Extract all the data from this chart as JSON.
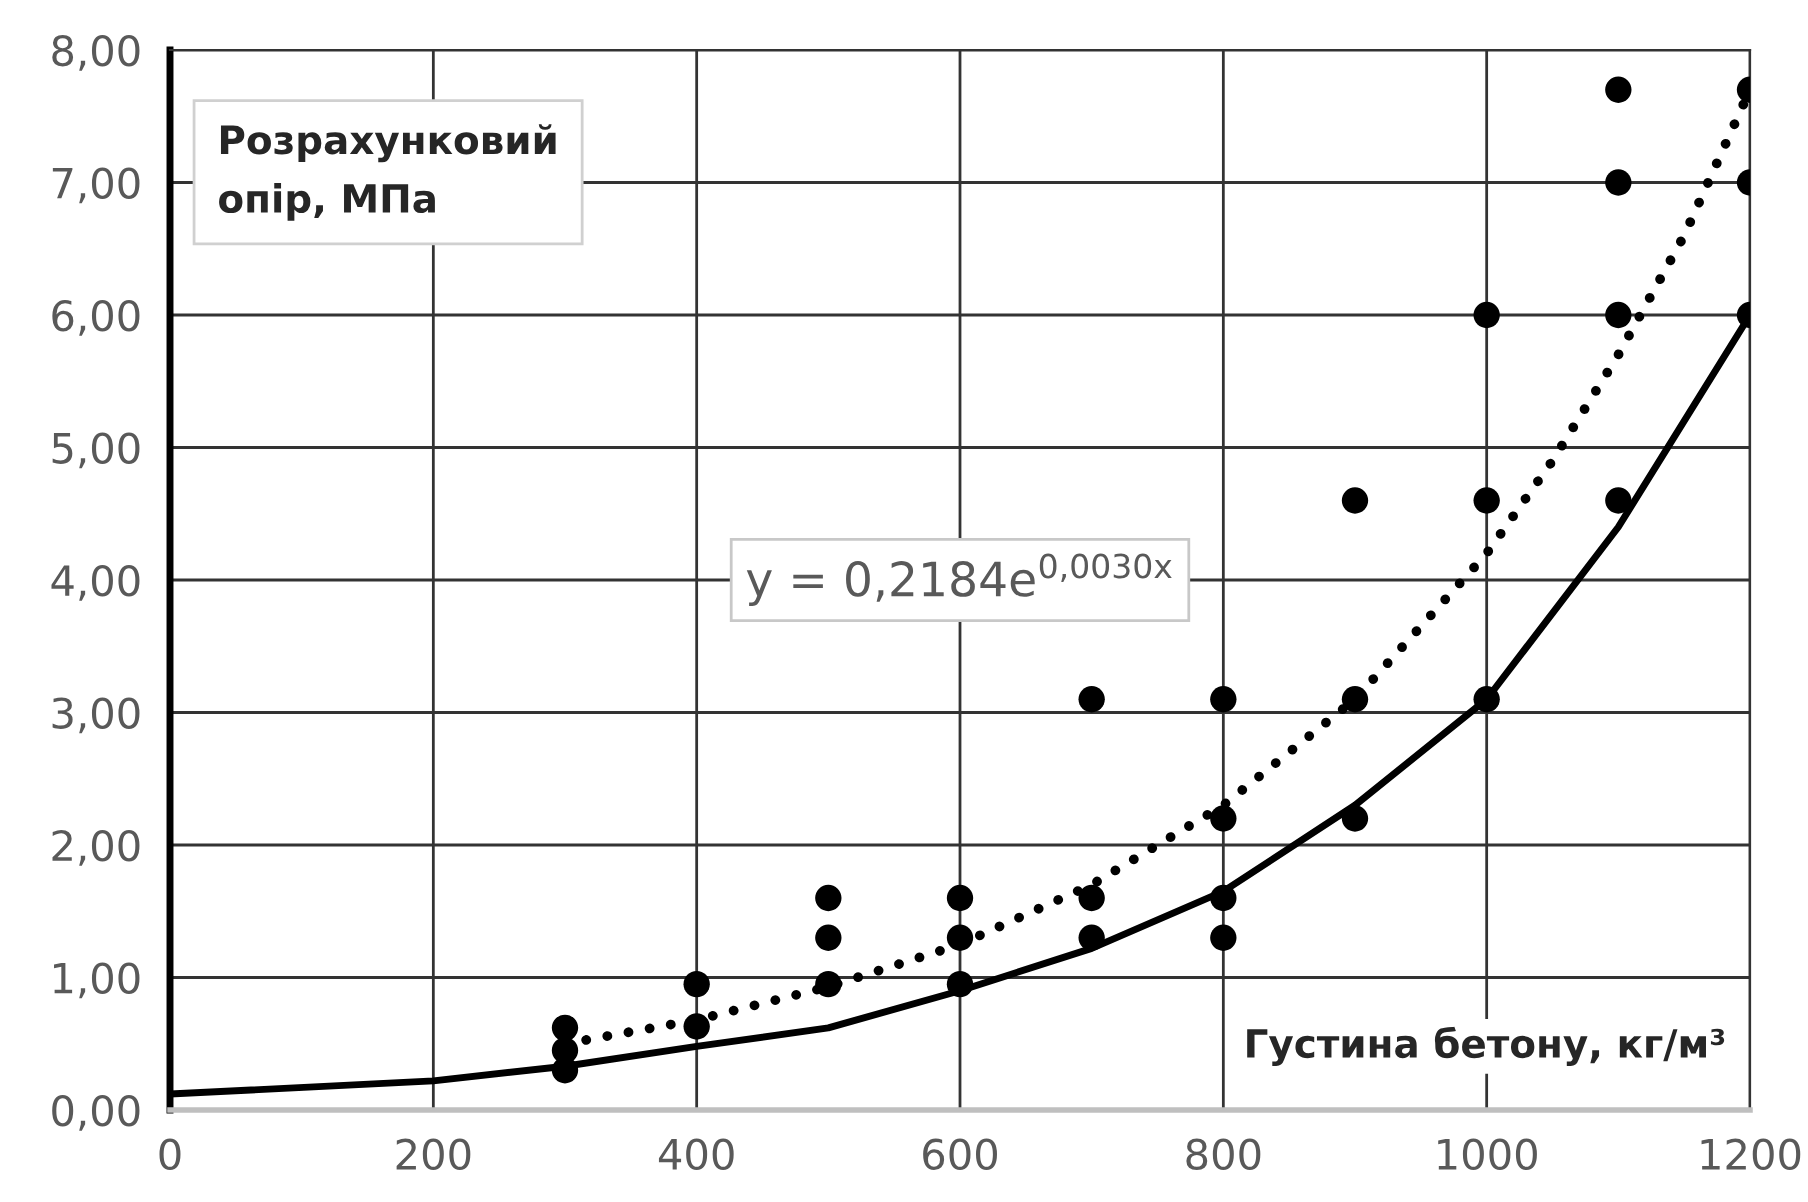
{
  "chart_data": {
    "type": "scatter",
    "ylabel": "Розрахунковий опір, МПа",
    "xlabel": "Густина бетону, кг/м³",
    "annotations": [
      "y = 0,2184e$^{0,0030x}$"
    ],
    "series": [
      {
        "color": "#000000",
        "marker": "circle",
        "x": [
          300,
          300,
          300,
          400,
          400,
          500,
          500,
          500,
          600,
          600,
          600,
          700,
          700,
          700,
          800,
          800,
          800,
          800,
          900,
          900,
          900,
          1000,
          1000,
          1000,
          1100,
          1100,
          1100,
          1100,
          1200,
          1200,
          1200
        ],
        "values": [
          0.62,
          0.45,
          0.3,
          0.95,
          0.63,
          1.6,
          1.3,
          0.95,
          1.6,
          1.3,
          0.95,
          3.1,
          1.6,
          1.3,
          3.1,
          2.2,
          1.6,
          1.3,
          4.6,
          3.1,
          2.2,
          6.0,
          4.6,
          3.1,
          7.7,
          7.0,
          6.0,
          4.6,
          7.7,
          7.0,
          6.0
        ]
      },
      {
        "type": "line",
        "color": "#000000",
        "line_style": "solid",
        "x": [
          0,
          200,
          300,
          400,
          500,
          600,
          700,
          800,
          900,
          1000,
          1100,
          1200
        ],
        "values": [
          0.12,
          0.22,
          0.33,
          0.48,
          0.62,
          0.9,
          1.22,
          1.65,
          2.3,
          3.1,
          4.4,
          6.0
        ]
      },
      {
        "type": "line",
        "color": "#000000",
        "line_style": "dotted",
        "x": [
          300,
          400,
          500,
          600,
          700,
          800,
          900,
          1000,
          1050,
          1100,
          1150,
          1200
        ],
        "values": [
          0.5,
          0.68,
          0.93,
          1.25,
          1.7,
          2.3,
          3.1,
          4.2,
          4.9,
          5.7,
          6.6,
          7.7
        ]
      }
    ],
    "xlim": [
      0,
      1200
    ],
    "xticks": [
      0,
      200,
      400,
      600,
      800,
      1000,
      1200
    ],
    "ylim": [
      0,
      8
    ],
    "yticks": [
      {
        "value": 0,
        "label": "0,00"
      },
      {
        "value": 1,
        "label": "1,00"
      },
      {
        "value": 2,
        "label": "2,00"
      },
      {
        "value": 3,
        "label": "3,00"
      },
      {
        "value": 4,
        "label": "4,00"
      },
      {
        "value": 5,
        "label": "5,00"
      },
      {
        "value": 6,
        "label": "6,00"
      },
      {
        "value": 7,
        "label": "7,00"
      },
      {
        "value": 8,
        "label": "8,00"
      }
    ],
    "grid": true
  }
}
